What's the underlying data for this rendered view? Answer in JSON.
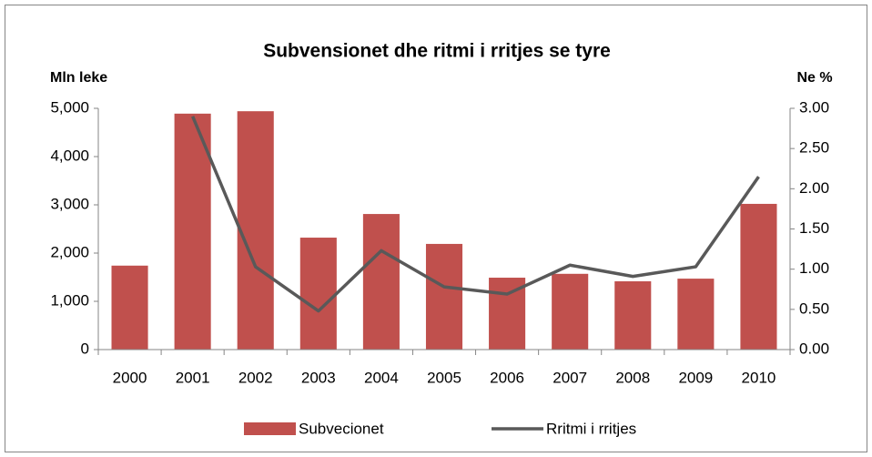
{
  "chart_data": {
    "type": "bar-line",
    "title": "Subvensionet dhe ritmi i rritjes se tyre",
    "y_label": "Mln leke",
    "y2_label": "Ne %",
    "categories": [
      "2000",
      "2001",
      "2002",
      "2003",
      "2004",
      "2005",
      "2006",
      "2007",
      "2008",
      "2009",
      "2010"
    ],
    "series": [
      {
        "name": "Subvecionet",
        "type": "bar",
        "color": "#c0504d",
        "values": [
          1740,
          4890,
          4940,
          2320,
          2810,
          2190,
          1490,
          1570,
          1415,
          1470,
          3020
        ]
      },
      {
        "name": "Rritmi i rritjes",
        "type": "line",
        "color": "#595959",
        "axis": "y2",
        "values": [
          null,
          2.9,
          1.03,
          0.48,
          1.23,
          0.78,
          0.69,
          1.05,
          0.91,
          1.03,
          2.15
        ]
      }
    ],
    "ylim": [
      0,
      5000
    ],
    "yticks": [
      0,
      {
        "value": 1000,
        "label": "1,000"
      },
      {
        "value": 2000,
        "label": "2,000"
      },
      {
        "value": 3000,
        "label": "3,000"
      },
      {
        "value": 4000,
        "label": "4,000"
      },
      {
        "value": 5000,
        "label": "5,000"
      }
    ],
    "y2lim": [
      0,
      3
    ],
    "y2ticks": [
      {
        "value": 0,
        "label": "0.00"
      },
      {
        "value": 0.5,
        "label": "0.50"
      },
      {
        "value": 1,
        "label": "1.00"
      },
      {
        "value": 1.5,
        "label": "1.50"
      },
      {
        "value": 2,
        "label": "2.00"
      },
      {
        "value": 2.5,
        "label": "2.50"
      },
      {
        "value": 3,
        "label": "3.00"
      }
    ],
    "grid": false,
    "legend": "bottom"
  }
}
